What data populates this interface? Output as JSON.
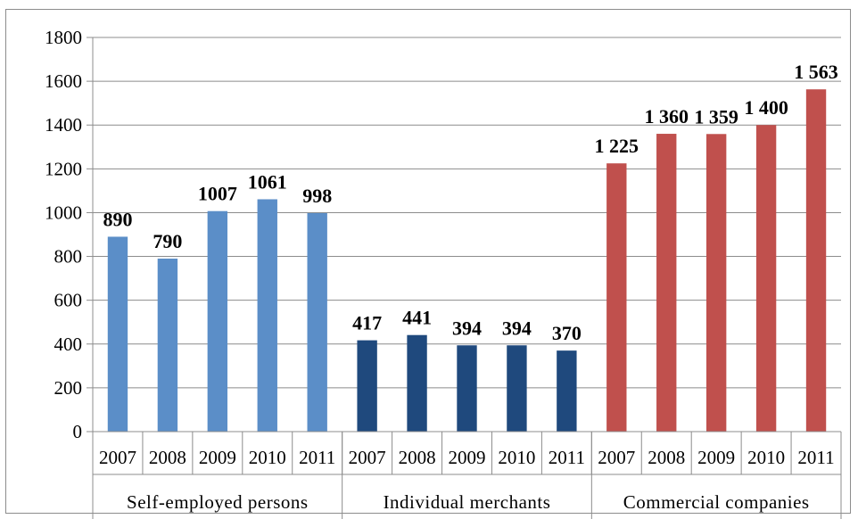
{
  "chart_data": {
    "type": "bar",
    "title": "",
    "xlabel": "",
    "ylabel": "",
    "ylim": [
      0,
      1800
    ],
    "yticks": [
      "0",
      "200",
      "400",
      "600",
      "800",
      "1000",
      "1200",
      "1400",
      "1600",
      "1800"
    ],
    "grid": true,
    "legend": "none",
    "groups": [
      {
        "name": "Self-employed persons",
        "color": "#5b8ec8",
        "categories": [
          "2007",
          "2008",
          "2009",
          "2010",
          "2011"
        ],
        "values": [
          890,
          790,
          1007,
          1061,
          998
        ],
        "labels": [
          "890",
          "790",
          "1007",
          "1061",
          "998"
        ]
      },
      {
        "name": "Individual merchants",
        "color": "#1f497d",
        "categories": [
          "2007",
          "2008",
          "2009",
          "2010",
          "2011"
        ],
        "values": [
          417,
          441,
          394,
          394,
          370
        ],
        "labels": [
          "417",
          "441",
          "394",
          "394",
          "370"
        ]
      },
      {
        "name": "Commercial companies",
        "color": "#c0504d",
        "categories": [
          "2007",
          "2008",
          "2009",
          "2010",
          "2011"
        ],
        "values": [
          1225,
          1360,
          1359,
          1400,
          1563
        ],
        "labels": [
          "1 225",
          "1 360",
          "1 359",
          "1 400",
          "1 563"
        ]
      }
    ]
  }
}
